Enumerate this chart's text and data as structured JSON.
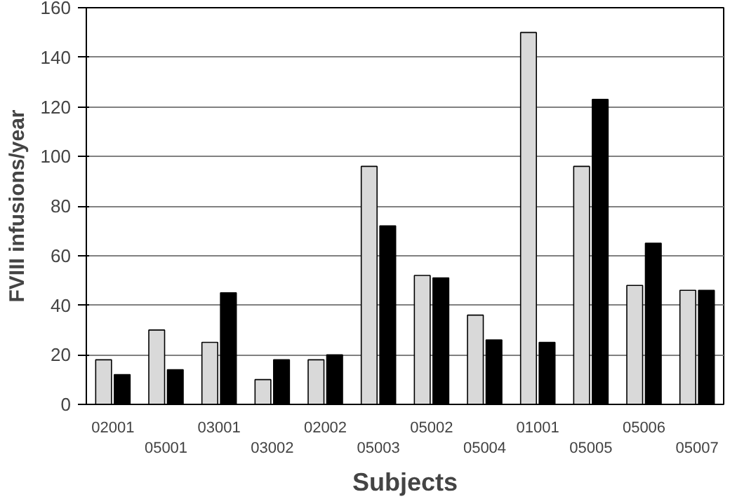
{
  "chart_data": {
    "type": "bar",
    "xlabel": "Subjects",
    "ylabel": "FVIII infusions/year",
    "categories": [
      "02001",
      "05001",
      "03001",
      "03002",
      "02002",
      "05003",
      "05002",
      "05004",
      "01001",
      "05005",
      "05006",
      "05007"
    ],
    "series": [
      {
        "color": "#d9d9d9",
        "values": [
          18,
          30,
          25,
          10,
          18,
          96,
          52,
          36,
          150,
          96,
          48,
          46
        ]
      },
      {
        "color": "#000000",
        "values": [
          12,
          14,
          45,
          18,
          20,
          72,
          51,
          26,
          25,
          123,
          65,
          46
        ]
      }
    ],
    "ylim": [
      0,
      160
    ],
    "yticks": [
      0,
      20,
      40,
      60,
      80,
      100,
      120,
      140,
      160
    ],
    "grid": "y"
  }
}
